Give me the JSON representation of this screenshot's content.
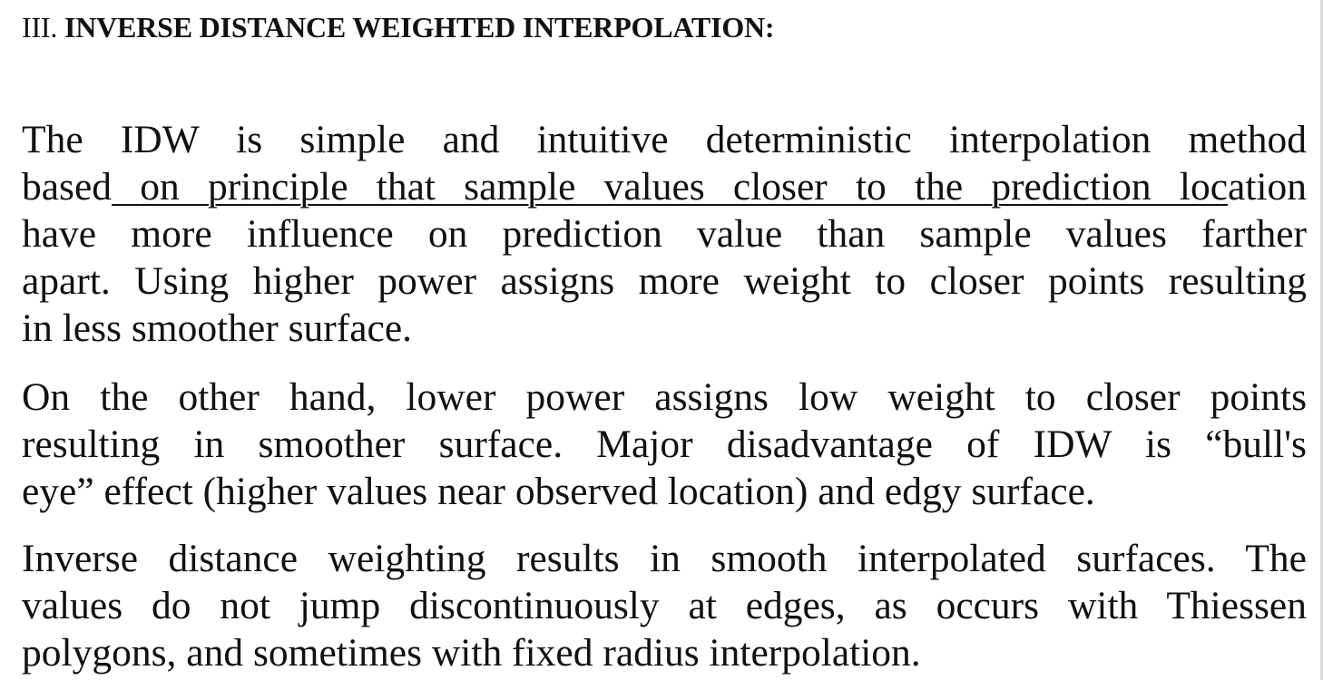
{
  "section": {
    "number": "III.",
    "title": "INVERSE DISTANCE WEIGHTED INTERPOLATION:"
  },
  "paragraphs": [
    {
      "lines": [
        "The IDW is simple and intuitive deterministic interpolation method",
        "based",
        "on principle that sample values closer to the prediction loc",
        "ation",
        "have more influence on prediction value than sample values farther",
        "apart. Using higher power assigns more weight to closer points resulting",
        "in less smoother surface."
      ]
    },
    {
      "lines": [
        "On the other hand, lower power assigns low weight to closer points",
        "resulting in smoother surface. Major disadvantage of IDW is “bull's",
        "eye” effect (higher values near observed location) and edgy surface."
      ]
    },
    {
      "lines": [
        "Inverse distance weighting results in smooth interpolated surfaces. The",
        "values do not jump discontinuously at edges, as occurs with Thiessen",
        "polygons, and sometimes with fixed radius interpolation."
      ]
    }
  ]
}
